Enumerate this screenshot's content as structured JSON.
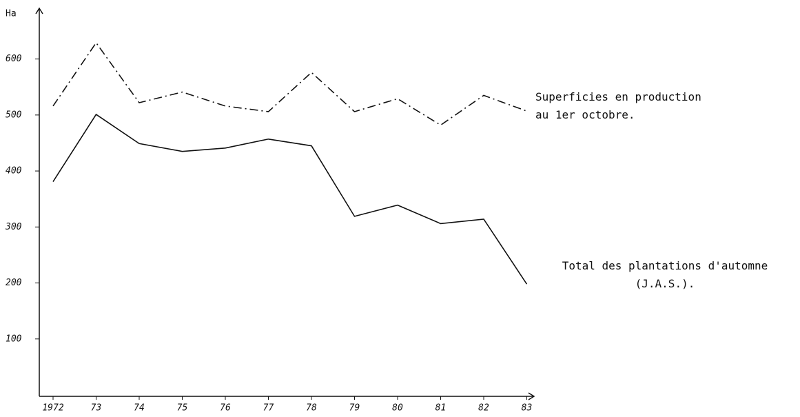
{
  "chart_data": {
    "type": "line",
    "ylabel": "Ha",
    "categories": [
      "1972",
      "73",
      "74",
      "75",
      "76",
      "77",
      "78",
      "79",
      "80",
      "81",
      "82",
      "83"
    ],
    "ylim": [
      0,
      650
    ],
    "yticks": [
      100,
      200,
      300,
      400,
      500,
      600
    ],
    "series": [
      {
        "name": "Superficies en production au 1er octobre.",
        "color": "#111111",
        "style": "dash-dot",
        "values": [
          516,
          629,
          522,
          541,
          516,
          506,
          576,
          506,
          529,
          482,
          535,
          507
        ]
      },
      {
        "name": "Total des plantations d'automne (J.A.S.).",
        "color": "#111111",
        "style": "solid",
        "values": [
          381,
          501,
          449,
          435,
          441,
          457,
          445,
          319,
          339,
          306,
          314,
          198
        ]
      }
    ]
  }
}
